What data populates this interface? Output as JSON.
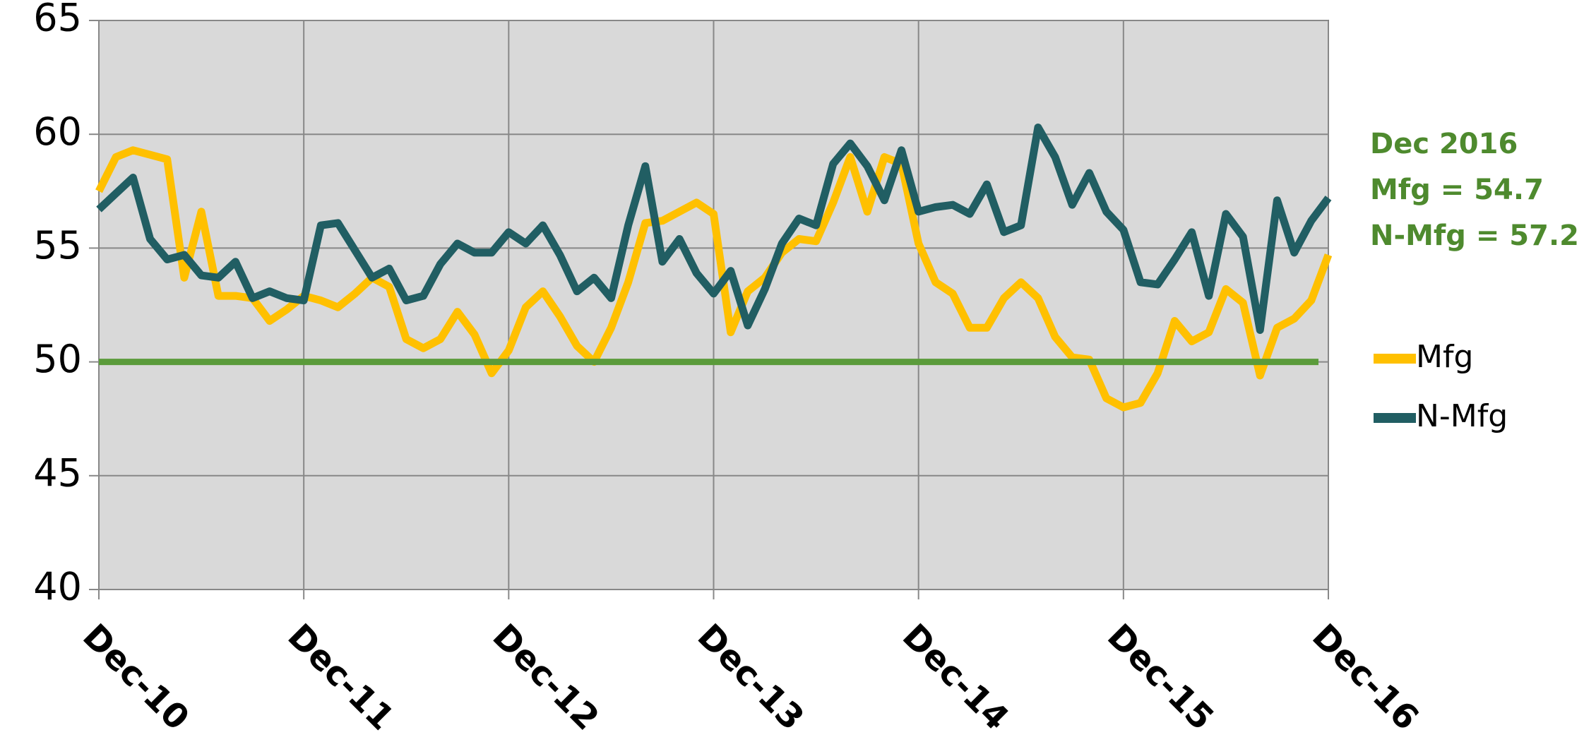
{
  "chart_data": {
    "type": "line",
    "categories": [
      "Dec-10",
      null,
      null,
      null,
      null,
      null,
      null,
      null,
      null,
      null,
      null,
      null,
      "Dec-11",
      null,
      null,
      null,
      null,
      null,
      null,
      null,
      null,
      null,
      null,
      null,
      "Dec-12",
      null,
      null,
      null,
      null,
      null,
      null,
      null,
      null,
      null,
      null,
      null,
      "Dec-13",
      null,
      null,
      null,
      null,
      null,
      null,
      null,
      null,
      null,
      null,
      null,
      "Dec-14",
      null,
      null,
      null,
      null,
      null,
      null,
      null,
      null,
      null,
      null,
      null,
      "Dec-15",
      null,
      null,
      null,
      null,
      null,
      null,
      null,
      null,
      null,
      null,
      null,
      "Dec-16"
    ],
    "series": [
      {
        "name": "Mfg",
        "color": "#ffc000",
        "values": [
          57.5,
          59.0,
          59.3,
          59.1,
          58.9,
          53.7,
          56.6,
          52.9,
          52.9,
          52.8,
          51.8,
          52.3,
          52.9,
          52.7,
          52.4,
          53.0,
          53.7,
          53.3,
          51.0,
          50.6,
          51.0,
          52.2,
          51.2,
          49.5,
          50.5,
          52.4,
          53.1,
          52.0,
          50.7,
          50.0,
          51.5,
          53.5,
          56.1,
          56.2,
          56.6,
          57.0,
          56.5,
          51.3,
          53.1,
          53.7,
          54.8,
          55.4,
          55.3,
          57.0,
          59.0,
          56.6,
          59.0,
          58.7,
          55.2,
          53.5,
          53.0,
          51.5,
          51.5,
          52.8,
          53.5,
          52.8,
          51.1,
          50.2,
          50.1,
          48.4,
          48.0,
          48.2,
          49.5,
          51.8,
          50.9,
          51.3,
          53.2,
          52.6,
          49.4,
          51.5,
          51.9,
          52.7,
          54.7
        ]
      },
      {
        "name": "N-Mfg",
        "color": "#215e63",
        "values": [
          56.7,
          57.4,
          58.1,
          55.4,
          54.5,
          54.7,
          53.8,
          53.7,
          54.4,
          52.8,
          53.1,
          52.8,
          52.7,
          56.0,
          56.1,
          54.9,
          53.7,
          54.1,
          52.7,
          52.9,
          54.3,
          55.2,
          54.8,
          54.8,
          55.7,
          55.2,
          56.0,
          54.7,
          53.1,
          53.7,
          52.8,
          56.0,
          58.6,
          54.4,
          55.4,
          53.9,
          53.0,
          54.0,
          51.6,
          53.2,
          55.2,
          56.3,
          56.0,
          58.7,
          59.6,
          58.6,
          57.1,
          59.3,
          56.6,
          56.8,
          56.9,
          56.5,
          57.8,
          55.7,
          56.0,
          60.3,
          59.0,
          56.9,
          58.3,
          56.6,
          55.8,
          53.5,
          53.4,
          54.5,
          55.7,
          52.9,
          56.5,
          55.5,
          51.4,
          57.1,
          54.8,
          56.2,
          57.2
        ]
      }
    ],
    "reference_line": {
      "value": 50,
      "color": "#5b9b3b"
    },
    "annotation": [
      "Dec 2016",
      "Mfg = 54.7",
      "N-Mfg = 57.2"
    ],
    "annotation_color": "#4e8a2e",
    "ylim": [
      40,
      65
    ],
    "yticks": [
      40,
      45,
      50,
      55,
      60,
      65
    ],
    "grid": true,
    "legend": "right",
    "plot_background": "#d9d9d9"
  }
}
